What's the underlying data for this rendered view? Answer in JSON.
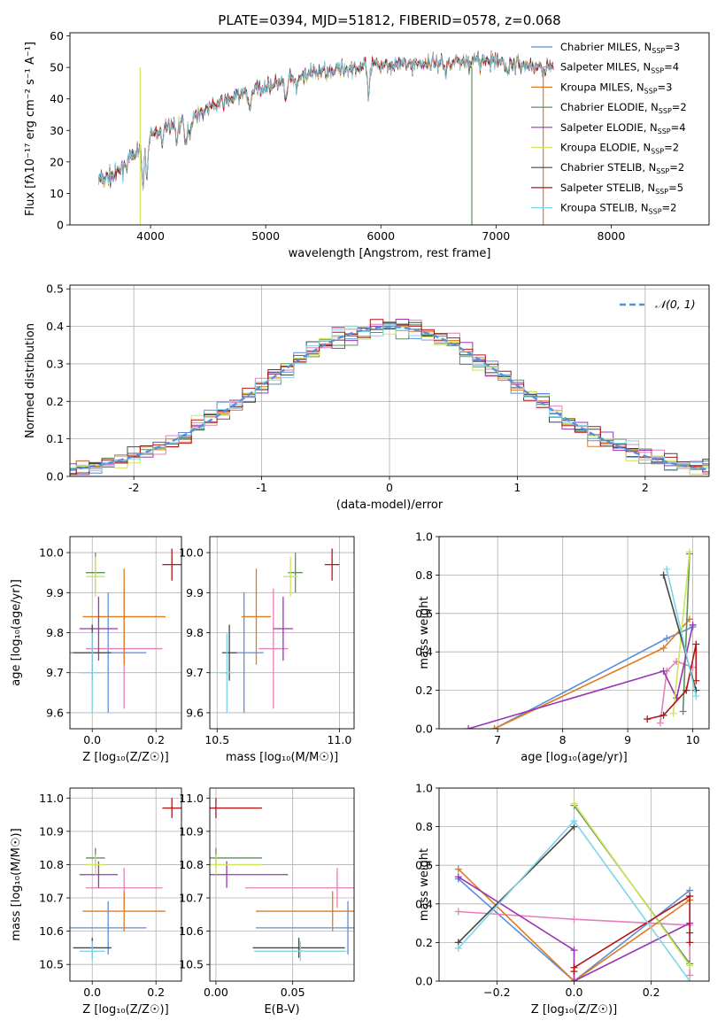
{
  "title": "PLATE=0394, MJD=51812, FIBERID=0578, z=0.068",
  "colors": {
    "Chabrier MILES": "#5a8fd8",
    "Salpeter MILES": "#e57fb8",
    "Kroupa MILES": "#e07a1f",
    "Chabrier ELODIE": "#5f8f5f",
    "Salpeter ELODIE": "#9b35b4",
    "Kroupa ELODIE": "#cfe55a",
    "Chabrier STELIB": "#454545",
    "Salpeter STELIB": "#b01616",
    "Kroupa STELIB": "#7ed5e6"
  },
  "chart_data": [
    {
      "type": "line",
      "title": "PLATE=0394, MJD=51812, FIBERID=0578, z=0.068",
      "xlabel": "wavelength [Angstrom, rest frame]",
      "ylabel": "Flux [fλ10⁻¹⁷ erg cm⁻² s⁻¹ A⁻¹]",
      "xlim": [
        3300,
        8850
      ],
      "ylim": [
        0,
        61
      ],
      "xticks": [
        4000,
        5000,
        6000,
        7000,
        8000
      ],
      "yticks": [
        0,
        10,
        20,
        30,
        40,
        50,
        60
      ],
      "grid": false,
      "legend_position": "right",
      "continuum": [
        [
          3550,
          14
        ],
        [
          3700,
          16
        ],
        [
          3800,
          20
        ],
        [
          3900,
          24
        ],
        [
          4000,
          28
        ],
        [
          4100,
          31
        ],
        [
          4300,
          33
        ],
        [
          4500,
          37
        ],
        [
          4700,
          40
        ],
        [
          4900,
          43
        ],
        [
          5100,
          45
        ],
        [
          5300,
          47
        ],
        [
          5500,
          49
        ],
        [
          5800,
          50
        ],
        [
          6000,
          51
        ],
        [
          6300,
          51
        ],
        [
          6600,
          52
        ],
        [
          6900,
          52
        ],
        [
          7200,
          51
        ],
        [
          7400,
          50
        ],
        [
          7500,
          50
        ]
      ],
      "series": [
        {
          "name": "Chabrier MILES",
          "nssp": "3"
        },
        {
          "name": "Salpeter MILES",
          "nssp": "4"
        },
        {
          "name": "Kroupa MILES",
          "nssp": "3"
        },
        {
          "name": "Chabrier ELODIE",
          "nssp": "2"
        },
        {
          "name": "Salpeter ELODIE",
          "nssp": "4"
        },
        {
          "name": "Kroupa ELODIE",
          "nssp": "2"
        },
        {
          "name": "Chabrier STELIB",
          "nssp": "2"
        },
        {
          "name": "Salpeter STELIB",
          "nssp": "5"
        },
        {
          "name": "Kroupa STELIB",
          "nssp": "2"
        }
      ]
    },
    {
      "type": "histogram",
      "xlabel": "(data-model)/error",
      "ylabel": "Normed distribution",
      "xlim": [
        -2.5,
        2.5
      ],
      "ylim": [
        0,
        0.51
      ],
      "xticks": [
        -2,
        -1,
        0,
        1,
        2
      ],
      "yticks": [
        0.0,
        0.1,
        0.2,
        0.3,
        0.4,
        0.5
      ],
      "grid": true,
      "legend": "𝒩(0, 1)",
      "legend_position": "top-right",
      "bin_width": 0.1
    },
    {
      "type": "scatter",
      "xlabel": "Z [log₁₀(Z/Z☉)]",
      "ylabel": "age  [log₁₀(age/yr)]",
      "xlim": [
        -0.07,
        0.28
      ],
      "ylim": [
        9.56,
        10.04
      ],
      "xticks": [
        0.0,
        0.2
      ],
      "yticks": [
        9.6,
        9.7,
        9.8,
        9.9,
        10.0
      ]
    },
    {
      "type": "scatter",
      "xlabel": "mass [log₁₀(M/M☉)]",
      "ylabel": "",
      "xlim": [
        10.47,
        11.06
      ],
      "ylim": [
        9.56,
        10.04
      ],
      "xticks": [
        10.5,
        11.0
      ],
      "yticks": [
        9.6,
        9.7,
        9.8,
        9.9,
        10.0
      ]
    },
    {
      "type": "line",
      "xlabel": "age  [log₁₀(age/yr)]",
      "ylabel": "mass weight",
      "xlim": [
        6.1,
        10.25
      ],
      "ylim": [
        0,
        1
      ],
      "xticks": [
        7,
        8,
        9,
        10
      ],
      "yticks": [
        0.0,
        0.2,
        0.4,
        0.6,
        0.8,
        1.0
      ]
    },
    {
      "type": "scatter",
      "xlabel": "Z [log₁₀(Z/Z☉)]",
      "ylabel": "mass [log₁₀(M/M☉)]",
      "xlim": [
        -0.07,
        0.28
      ],
      "ylim": [
        10.45,
        11.03
      ],
      "xticks": [
        0.0,
        0.2
      ],
      "yticks": [
        10.5,
        10.6,
        10.7,
        10.8,
        10.9,
        11.0
      ]
    },
    {
      "type": "scatter",
      "xlabel": "E(B-V)",
      "ylabel": "",
      "xlim": [
        -0.004,
        0.09
      ],
      "ylim": [
        10.45,
        11.03
      ],
      "xticks": [
        0.0,
        0.05
      ],
      "yticks": [
        10.5,
        10.6,
        10.7,
        10.8,
        10.9,
        11.0
      ]
    },
    {
      "type": "line",
      "xlabel": "Z [log₁₀(Z/Z☉)]",
      "ylabel": "mass weight",
      "xlim": [
        -0.35,
        0.35
      ],
      "ylim": [
        0,
        1
      ],
      "xticks": [
        -0.2,
        0.0,
        0.2
      ],
      "yticks": [
        0.0,
        0.2,
        0.4,
        0.6,
        0.8,
        1.0
      ]
    }
  ],
  "points": [
    {
      "name": "Chabrier MILES",
      "Z": 0.05,
      "Zerr": 0.12,
      "age": 9.75,
      "ageerr": 0.15,
      "mass": 10.61,
      "masserr": 0.08,
      "ebv": 0.086,
      "ebverr": 0.06
    },
    {
      "name": "Salpeter MILES",
      "Z": 0.1,
      "Zerr": 0.12,
      "age": 9.76,
      "ageerr": 0.15,
      "mass": 10.73,
      "masserr": 0.06,
      "ebv": 0.079,
      "ebverr": 0.06
    },
    {
      "name": "Kroupa MILES",
      "Z": 0.1,
      "Zerr": 0.13,
      "age": 9.84,
      "ageerr": 0.12,
      "mass": 10.66,
      "masserr": 0.06,
      "ebv": 0.076,
      "ebverr": 0.05
    },
    {
      "name": "Chabrier ELODIE",
      "Z": 0.01,
      "Zerr": 0.03,
      "age": 9.95,
      "ageerr": 0.05,
      "mass": 10.82,
      "masserr": 0.03,
      "ebv": 0.0,
      "ebverr": 0.03
    },
    {
      "name": "Salpeter ELODIE",
      "Z": 0.02,
      "Zerr": 0.06,
      "age": 9.81,
      "ageerr": 0.08,
      "mass": 10.77,
      "masserr": 0.04,
      "ebv": 0.007,
      "ebverr": 0.04
    },
    {
      "name": "Kroupa ELODIE",
      "Z": 0.01,
      "Zerr": 0.03,
      "age": 9.94,
      "ageerr": 0.05,
      "mass": 10.8,
      "masserr": 0.03,
      "ebv": 0.0,
      "ebverr": 0.03
    },
    {
      "name": "Chabrier STELIB",
      "Z": 0.0,
      "Zerr": 0.06,
      "age": 9.75,
      "ageerr": 0.07,
      "mass": 10.55,
      "masserr": 0.03,
      "ebv": 0.054,
      "ebverr": 0.03
    },
    {
      "name": "Salpeter STELIB",
      "Z": 0.25,
      "Zerr": 0.03,
      "age": 9.97,
      "ageerr": 0.04,
      "mass": 10.97,
      "masserr": 0.03,
      "ebv": 0.0,
      "ebverr": 0.03
    },
    {
      "name": "Kroupa STELIB",
      "Z": 0.0,
      "Zerr": 0.04,
      "age": 9.7,
      "ageerr": 0.1,
      "mass": 10.54,
      "masserr": 0.03,
      "ebv": 0.055,
      "ebverr": 0.03
    }
  ],
  "ssp_age": [
    {
      "name": "Chabrier MILES",
      "pts": [
        [
          6.95,
          0.0
        ],
        [
          9.6,
          0.47
        ],
        [
          10.0,
          0.53
        ]
      ]
    },
    {
      "name": "Salpeter MILES",
      "pts": [
        [
          9.5,
          0.03
        ],
        [
          9.6,
          0.3
        ],
        [
          9.75,
          0.35
        ],
        [
          10.0,
          0.32
        ]
      ]
    },
    {
      "name": "Kroupa MILES",
      "pts": [
        [
          6.95,
          0.0
        ],
        [
          9.55,
          0.42
        ],
        [
          9.95,
          0.57
        ]
      ]
    },
    {
      "name": "Chabrier ELODIE",
      "pts": [
        [
          9.85,
          0.09
        ],
        [
          9.95,
          0.91
        ]
      ]
    },
    {
      "name": "Salpeter ELODIE",
      "pts": [
        [
          6.55,
          0.0
        ],
        [
          9.55,
          0.3
        ],
        [
          9.75,
          0.16
        ],
        [
          10.0,
          0.54
        ]
      ]
    },
    {
      "name": "Kroupa ELODIE",
      "pts": [
        [
          9.7,
          0.08
        ],
        [
          9.95,
          0.92
        ]
      ]
    },
    {
      "name": "Chabrier STELIB",
      "pts": [
        [
          9.55,
          0.8
        ],
        [
          10.05,
          0.2
        ]
      ]
    },
    {
      "name": "Salpeter STELIB",
      "pts": [
        [
          9.3,
          0.05
        ],
        [
          9.55,
          0.07
        ],
        [
          9.9,
          0.2
        ],
        [
          10.05,
          0.44
        ],
        [
          10.05,
          0.25
        ]
      ]
    },
    {
      "name": "Kroupa STELIB",
      "pts": [
        [
          9.6,
          0.83
        ],
        [
          10.05,
          0.17
        ]
      ]
    }
  ],
  "ssp_z": [
    {
      "name": "Chabrier MILES",
      "pts": [
        [
          -0.3,
          0.53
        ],
        [
          0.0,
          0.0
        ],
        [
          0.3,
          0.47
        ]
      ]
    },
    {
      "name": "Salpeter MILES",
      "pts": [
        [
          -0.3,
          0.36
        ],
        [
          0.0,
          0.32
        ],
        [
          0.3,
          0.29
        ],
        [
          0.3,
          0.03
        ]
      ]
    },
    {
      "name": "Kroupa MILES",
      "pts": [
        [
          -0.3,
          0.58
        ],
        [
          0.0,
          0.0
        ],
        [
          0.3,
          0.42
        ]
      ]
    },
    {
      "name": "Chabrier ELODIE",
      "pts": [
        [
          0.0,
          0.91
        ],
        [
          0.3,
          0.09
        ]
      ]
    },
    {
      "name": "Salpeter ELODIE",
      "pts": [
        [
          -0.3,
          0.54
        ],
        [
          0.0,
          0.16
        ],
        [
          0.0,
          0.0
        ],
        [
          0.3,
          0.3
        ]
      ]
    },
    {
      "name": "Kroupa ELODIE",
      "pts": [
        [
          0.0,
          0.92
        ],
        [
          0.3,
          0.08
        ]
      ]
    },
    {
      "name": "Chabrier STELIB",
      "pts": [
        [
          -0.3,
          0.2
        ],
        [
          0.0,
          0.8
        ]
      ]
    },
    {
      "name": "Salpeter STELIB",
      "pts": [
        [
          0.0,
          0.05
        ],
        [
          0.0,
          0.07
        ],
        [
          0.3,
          0.44
        ],
        [
          0.3,
          0.2
        ],
        [
          0.3,
          0.25
        ]
      ]
    },
    {
      "name": "Kroupa STELIB",
      "pts": [
        [
          -0.3,
          0.17
        ],
        [
          0.0,
          0.83
        ],
        [
          0.3,
          0.0
        ]
      ]
    }
  ]
}
